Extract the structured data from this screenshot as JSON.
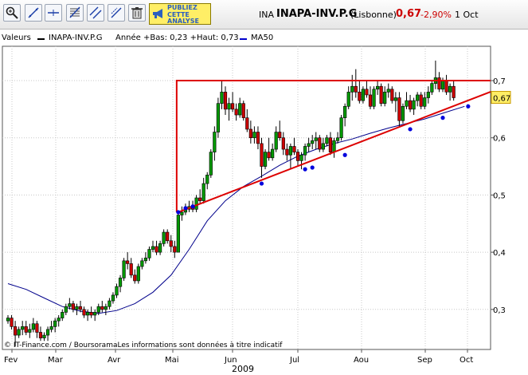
{
  "toolbar": {
    "buttons": [
      "zoom-icon",
      "line-draw-icon",
      "horizontal-line-icon",
      "fibonacci-icon",
      "parallel-lines-icon",
      "channel-icon",
      "trash-icon"
    ],
    "ad_label": "PUBLIEZ\nCETTE\nANALYSE"
  },
  "header": {
    "ticker": "INA",
    "name": "INAPA-INV.P.G",
    "market": "(Lisbonne)",
    "price": "0,67",
    "change": "-2,90%",
    "date": "1 Oct"
  },
  "legend": {
    "label": "Valeurs",
    "series1_name": "INAPA-INV.P.G",
    "series1_info": "Année +Bas: 0,23 +Haut: 0,73",
    "series2_name": "MA50"
  },
  "chart_data": {
    "type": "candlestick",
    "x_labels": [
      "Fev",
      "Mar",
      "Avr",
      "Mai",
      "Jun",
      "Jul",
      "Aou",
      "Sep",
      "Oct"
    ],
    "x_year": "2009",
    "y_ticks": [
      "0,7",
      "0,6",
      "0,5",
      "0,4",
      "0,3"
    ],
    "ylim": [
      0.23,
      0.76
    ],
    "last_price_label": "0,67",
    "source_text": "© IT-Finance.com / BoursoramaLes informations sont données à titre indicatif",
    "colors": {
      "up": "#009900",
      "down": "#cc0000",
      "ma": "#00008b",
      "trend": "#dd0000",
      "touch": "#0000dd"
    },
    "ohlc": [
      [
        0.28,
        0.29,
        0.275,
        0.285
      ],
      [
        0.285,
        0.29,
        0.265,
        0.27
      ],
      [
        0.27,
        0.28,
        0.235,
        0.255
      ],
      [
        0.255,
        0.27,
        0.25,
        0.265
      ],
      [
        0.265,
        0.28,
        0.255,
        0.27
      ],
      [
        0.27,
        0.28,
        0.255,
        0.26
      ],
      [
        0.26,
        0.275,
        0.25,
        0.265
      ],
      [
        0.265,
        0.285,
        0.26,
        0.275
      ],
      [
        0.275,
        0.28,
        0.25,
        0.26
      ],
      [
        0.26,
        0.27,
        0.245,
        0.25
      ],
      [
        0.25,
        0.26,
        0.245,
        0.255
      ],
      [
        0.255,
        0.27,
        0.245,
        0.265
      ],
      [
        0.265,
        0.28,
        0.26,
        0.27
      ],
      [
        0.27,
        0.285,
        0.26,
        0.28
      ],
      [
        0.28,
        0.29,
        0.27,
        0.285
      ],
      [
        0.285,
        0.3,
        0.28,
        0.295
      ],
      [
        0.295,
        0.31,
        0.29,
        0.305
      ],
      [
        0.305,
        0.32,
        0.3,
        0.31
      ],
      [
        0.31,
        0.315,
        0.295,
        0.3
      ],
      [
        0.3,
        0.31,
        0.29,
        0.305
      ],
      [
        0.305,
        0.315,
        0.295,
        0.3
      ],
      [
        0.3,
        0.305,
        0.285,
        0.29
      ],
      [
        0.29,
        0.3,
        0.28,
        0.295
      ],
      [
        0.295,
        0.305,
        0.285,
        0.29
      ],
      [
        0.29,
        0.3,
        0.28,
        0.295
      ],
      [
        0.295,
        0.31,
        0.29,
        0.305
      ],
      [
        0.305,
        0.315,
        0.295,
        0.3
      ],
      [
        0.3,
        0.31,
        0.29,
        0.305
      ],
      [
        0.305,
        0.32,
        0.3,
        0.315
      ],
      [
        0.315,
        0.33,
        0.31,
        0.325
      ],
      [
        0.325,
        0.345,
        0.32,
        0.34
      ],
      [
        0.34,
        0.36,
        0.33,
        0.355
      ],
      [
        0.355,
        0.39,
        0.35,
        0.385
      ],
      [
        0.385,
        0.4,
        0.37,
        0.38
      ],
      [
        0.38,
        0.39,
        0.355,
        0.36
      ],
      [
        0.36,
        0.37,
        0.345,
        0.35
      ],
      [
        0.35,
        0.38,
        0.345,
        0.375
      ],
      [
        0.375,
        0.39,
        0.37,
        0.385
      ],
      [
        0.385,
        0.4,
        0.38,
        0.39
      ],
      [
        0.39,
        0.41,
        0.385,
        0.405
      ],
      [
        0.405,
        0.42,
        0.4,
        0.41
      ],
      [
        0.41,
        0.42,
        0.395,
        0.4
      ],
      [
        0.4,
        0.42,
        0.395,
        0.415
      ],
      [
        0.415,
        0.44,
        0.41,
        0.435
      ],
      [
        0.435,
        0.44,
        0.415,
        0.42
      ],
      [
        0.42,
        0.43,
        0.4,
        0.41
      ],
      [
        0.41,
        0.42,
        0.39,
        0.4
      ],
      [
        0.4,
        0.47,
        0.4,
        0.465
      ],
      [
        0.465,
        0.48,
        0.455,
        0.47
      ],
      [
        0.47,
        0.485,
        0.465,
        0.475
      ],
      [
        0.475,
        0.49,
        0.47,
        0.48
      ],
      [
        0.48,
        0.49,
        0.47,
        0.475
      ],
      [
        0.475,
        0.5,
        0.47,
        0.495
      ],
      [
        0.495,
        0.51,
        0.485,
        0.49
      ],
      [
        0.49,
        0.53,
        0.485,
        0.52
      ],
      [
        0.52,
        0.54,
        0.51,
        0.535
      ],
      [
        0.535,
        0.58,
        0.53,
        0.575
      ],
      [
        0.575,
        0.62,
        0.56,
        0.61
      ],
      [
        0.61,
        0.67,
        0.6,
        0.66
      ],
      [
        0.66,
        0.7,
        0.65,
        0.68
      ],
      [
        0.68,
        0.69,
        0.64,
        0.65
      ],
      [
        0.65,
        0.67,
        0.63,
        0.66
      ],
      [
        0.66,
        0.68,
        0.645,
        0.65
      ],
      [
        0.65,
        0.66,
        0.63,
        0.64
      ],
      [
        0.64,
        0.67,
        0.635,
        0.66
      ],
      [
        0.66,
        0.665,
        0.63,
        0.635
      ],
      [
        0.635,
        0.65,
        0.61,
        0.615
      ],
      [
        0.615,
        0.63,
        0.59,
        0.6
      ],
      [
        0.6,
        0.62,
        0.59,
        0.61
      ],
      [
        0.61,
        0.62,
        0.58,
        0.59
      ],
      [
        0.59,
        0.6,
        0.53,
        0.55
      ],
      [
        0.55,
        0.58,
        0.545,
        0.575
      ],
      [
        0.575,
        0.6,
        0.56,
        0.565
      ],
      [
        0.565,
        0.59,
        0.56,
        0.58
      ],
      [
        0.58,
        0.62,
        0.575,
        0.61
      ],
      [
        0.61,
        0.63,
        0.595,
        0.6
      ],
      [
        0.6,
        0.61,
        0.57,
        0.58
      ],
      [
        0.58,
        0.59,
        0.56,
        0.57
      ],
      [
        0.57,
        0.59,
        0.545,
        0.585
      ],
      [
        0.585,
        0.6,
        0.57,
        0.575
      ],
      [
        0.575,
        0.58,
        0.55,
        0.56
      ],
      [
        0.56,
        0.575,
        0.545,
        0.57
      ],
      [
        0.57,
        0.59,
        0.56,
        0.585
      ],
      [
        0.585,
        0.6,
        0.575,
        0.59
      ],
      [
        0.59,
        0.605,
        0.58,
        0.595
      ],
      [
        0.595,
        0.61,
        0.58,
        0.6
      ],
      [
        0.6,
        0.605,
        0.575,
        0.58
      ],
      [
        0.58,
        0.6,
        0.575,
        0.59
      ],
      [
        0.59,
        0.605,
        0.585,
        0.6
      ],
      [
        0.6,
        0.61,
        0.57,
        0.575
      ],
      [
        0.575,
        0.6,
        0.565,
        0.595
      ],
      [
        0.595,
        0.61,
        0.59,
        0.6
      ],
      [
        0.6,
        0.64,
        0.595,
        0.635
      ],
      [
        0.635,
        0.66,
        0.62,
        0.655
      ],
      [
        0.655,
        0.69,
        0.65,
        0.68
      ],
      [
        0.68,
        0.71,
        0.665,
        0.69
      ],
      [
        0.69,
        0.72,
        0.67,
        0.68
      ],
      [
        0.68,
        0.7,
        0.66,
        0.665
      ],
      [
        0.665,
        0.69,
        0.66,
        0.685
      ],
      [
        0.685,
        0.7,
        0.67,
        0.675
      ],
      [
        0.675,
        0.69,
        0.65,
        0.655
      ],
      [
        0.655,
        0.69,
        0.65,
        0.685
      ],
      [
        0.685,
        0.7,
        0.675,
        0.69
      ],
      [
        0.69,
        0.695,
        0.655,
        0.66
      ],
      [
        0.66,
        0.69,
        0.655,
        0.68
      ],
      [
        0.68,
        0.695,
        0.67,
        0.685
      ],
      [
        0.685,
        0.69,
        0.66,
        0.665
      ],
      [
        0.665,
        0.68,
        0.645,
        0.67
      ],
      [
        0.67,
        0.68,
        0.62,
        0.63
      ],
      [
        0.63,
        0.66,
        0.625,
        0.655
      ],
      [
        0.655,
        0.68,
        0.65,
        0.665
      ],
      [
        0.665,
        0.675,
        0.645,
        0.65
      ],
      [
        0.65,
        0.67,
        0.64,
        0.665
      ],
      [
        0.665,
        0.68,
        0.655,
        0.675
      ],
      [
        0.675,
        0.68,
        0.65,
        0.655
      ],
      [
        0.655,
        0.68,
        0.65,
        0.67
      ],
      [
        0.67,
        0.69,
        0.66,
        0.68
      ],
      [
        0.68,
        0.7,
        0.675,
        0.695
      ],
      [
        0.695,
        0.735,
        0.685,
        0.705
      ],
      [
        0.705,
        0.715,
        0.68,
        0.685
      ],
      [
        0.685,
        0.705,
        0.68,
        0.7
      ],
      [
        0.7,
        0.71,
        0.675,
        0.68
      ],
      [
        0.68,
        0.695,
        0.665,
        0.69
      ],
      [
        0.69,
        0.7,
        0.665,
        0.67
      ]
    ],
    "ma50": [
      [
        0,
        0.345
      ],
      [
        5,
        0.335
      ],
      [
        10,
        0.32
      ],
      [
        15,
        0.305
      ],
      [
        20,
        0.297
      ],
      [
        25,
        0.293
      ],
      [
        30,
        0.298
      ],
      [
        35,
        0.31
      ],
      [
        40,
        0.33
      ],
      [
        45,
        0.36
      ],
      [
        50,
        0.405
      ],
      [
        55,
        0.455
      ],
      [
        60,
        0.49
      ],
      [
        65,
        0.515
      ],
      [
        70,
        0.533
      ],
      [
        75,
        0.552
      ],
      [
        80,
        0.568
      ],
      [
        85,
        0.58
      ],
      [
        90,
        0.59
      ],
      [
        95,
        0.598
      ],
      [
        100,
        0.608
      ],
      [
        105,
        0.617
      ],
      [
        110,
        0.625
      ],
      [
        115,
        0.633
      ],
      [
        120,
        0.643
      ],
      [
        126,
        0.655
      ]
    ],
    "resistance_value": 0.7,
    "resistance_start_index": 47,
    "support_line": [
      [
        47,
        0.47
      ],
      [
        133,
        0.68
      ]
    ],
    "support_touches": [
      [
        47,
        0.47
      ],
      [
        49,
        0.477
      ],
      [
        51,
        0.48
      ],
      [
        70,
        0.52
      ],
      [
        82,
        0.545
      ],
      [
        84,
        0.548
      ],
      [
        93,
        0.57
      ],
      [
        111,
        0.615
      ],
      [
        120,
        0.635
      ],
      [
        127,
        0.655
      ]
    ]
  }
}
